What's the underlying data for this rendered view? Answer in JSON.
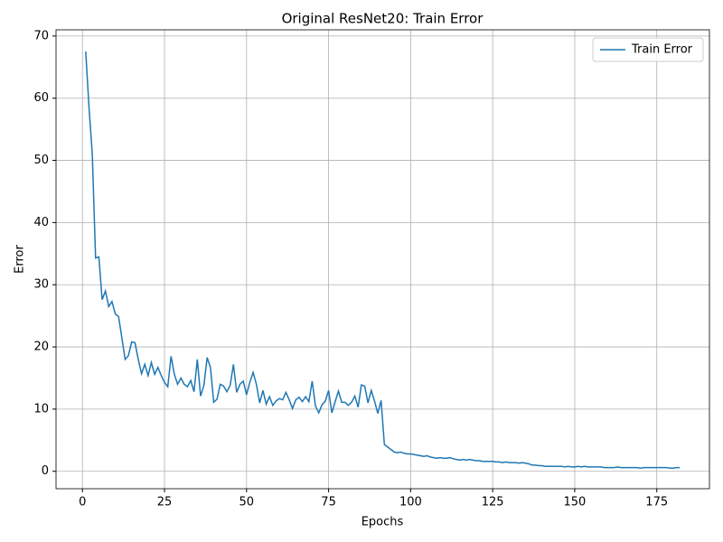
{
  "chart_data": {
    "type": "line",
    "title": "Original ResNet20: Train Error",
    "x_label": "Epochs",
    "y_label": "Error",
    "x": [
      1,
      2,
      3,
      4,
      5,
      6,
      7,
      8,
      9,
      10,
      11,
      12,
      13,
      14,
      15,
      16,
      17,
      18,
      19,
      20,
      21,
      22,
      23,
      24,
      25,
      26,
      27,
      28,
      29,
      30,
      31,
      32,
      33,
      34,
      35,
      36,
      37,
      38,
      39,
      40,
      41,
      42,
      43,
      44,
      45,
      46,
      47,
      48,
      49,
      50,
      51,
      52,
      53,
      54,
      55,
      56,
      57,
      58,
      59,
      60,
      61,
      62,
      63,
      64,
      65,
      66,
      67,
      68,
      69,
      70,
      71,
      72,
      73,
      74,
      75,
      76,
      77,
      78,
      79,
      80,
      81,
      82,
      83,
      84,
      85,
      86,
      87,
      88,
      89,
      90,
      91,
      92,
      93,
      94,
      95,
      96,
      97,
      98,
      99,
      100,
      101,
      102,
      103,
      104,
      105,
      106,
      107,
      108,
      109,
      110,
      111,
      112,
      113,
      114,
      115,
      116,
      117,
      118,
      119,
      120,
      121,
      122,
      123,
      124,
      125,
      126,
      127,
      128,
      129,
      130,
      131,
      132,
      133,
      134,
      135,
      136,
      137,
      138,
      139,
      140,
      141,
      142,
      143,
      144,
      145,
      146,
      147,
      148,
      149,
      150,
      151,
      152,
      153,
      154,
      155,
      156,
      157,
      158,
      159,
      160,
      161,
      162,
      163,
      164,
      165,
      166,
      167,
      168,
      169,
      170,
      171,
      172,
      173,
      174,
      175,
      176,
      177,
      178,
      179,
      180,
      181,
      182
    ],
    "series": [
      {
        "name": "Train Error",
        "color": "#1f77b4",
        "values": [
          67.5,
          58.5,
          51,
          34.3,
          34.5,
          27.6,
          29,
          26.5,
          27.3,
          25.3,
          24.9,
          21.5,
          18,
          18.6,
          20.8,
          20.7,
          18,
          15.7,
          17.2,
          15.4,
          17.5,
          15.6,
          16.7,
          15.4,
          14.3,
          13.6,
          18.5,
          15.6,
          14,
          15,
          14,
          13.6,
          14.6,
          12.8,
          18,
          12.1,
          13.8,
          18.3,
          16.7,
          11.1,
          11.6,
          14,
          13.7,
          12.8,
          13.8,
          17.2,
          12.7,
          14,
          14.5,
          12.3,
          14.3,
          15.9,
          14,
          11,
          13,
          10.8,
          12,
          10.6,
          11.3,
          11.7,
          11.5,
          12.7,
          11.5,
          10.1,
          11.5,
          11.9,
          11.2,
          12,
          11.2,
          14.5,
          10.5,
          9.4,
          10.7,
          11.3,
          13,
          9.4,
          11.2,
          12.9,
          11.1,
          11.1,
          10.6,
          11.1,
          12.1,
          10.3,
          13.9,
          13.7,
          11,
          13,
          11.3,
          9.3,
          11.4,
          4.3,
          3.9,
          3.5,
          3.1,
          3.0,
          3.1,
          2.9,
          2.8,
          2.8,
          2.7,
          2.6,
          2.5,
          2.4,
          2.5,
          2.3,
          2.2,
          2.1,
          2.2,
          2.1,
          2.1,
          2.2,
          2.0,
          1.9,
          1.8,
          1.9,
          1.8,
          1.9,
          1.8,
          1.7,
          1.7,
          1.6,
          1.6,
          1.6,
          1.6,
          1.5,
          1.5,
          1.4,
          1.5,
          1.4,
          1.4,
          1.4,
          1.3,
          1.4,
          1.3,
          1.2,
          1.0,
          1.0,
          0.9,
          0.9,
          0.8,
          0.8,
          0.8,
          0.8,
          0.8,
          0.8,
          0.7,
          0.8,
          0.7,
          0.7,
          0.8,
          0.7,
          0.8,
          0.7,
          0.7,
          0.7,
          0.7,
          0.7,
          0.6,
          0.6,
          0.6,
          0.6,
          0.7,
          0.6,
          0.6,
          0.6,
          0.6,
          0.6,
          0.6,
          0.5,
          0.6,
          0.6,
          0.6,
          0.6,
          0.6,
          0.6,
          0.6,
          0.6,
          0.5,
          0.5,
          0.6,
          0.6
        ]
      }
    ],
    "xlim": [
      -8.05,
      191.05
    ],
    "ylim": [
      -2.8,
      71.0
    ],
    "xticks": [
      0,
      25,
      50,
      75,
      100,
      125,
      150,
      175
    ],
    "yticks": [
      0,
      10,
      20,
      30,
      40,
      50,
      60,
      70
    ],
    "grid": true,
    "legend": "upper right"
  }
}
